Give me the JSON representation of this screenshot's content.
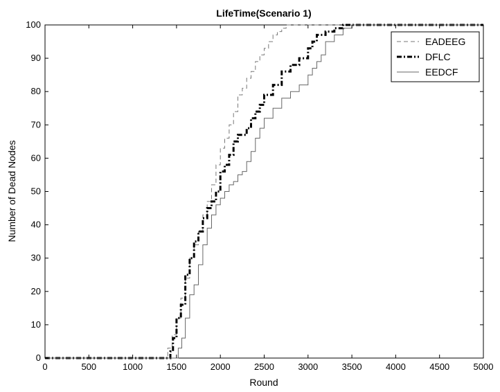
{
  "chart_data": {
    "type": "line",
    "title": "LifeTime(Scenario 1)",
    "xlabel": "Round",
    "ylabel": "Number of Dead Nodes",
    "xlim": [
      0,
      5000
    ],
    "ylim": [
      0,
      100
    ],
    "xticks": [
      0,
      500,
      1000,
      1500,
      2000,
      2500,
      3000,
      3500,
      4000,
      4500,
      5000
    ],
    "yticks": [
      0,
      10,
      20,
      30,
      40,
      50,
      60,
      70,
      80,
      90,
      100
    ],
    "grid": false,
    "legend_position": "top-right",
    "series": [
      {
        "name": "EADEEG",
        "style": "dashed",
        "color": "#777777",
        "x": [
          0,
          1380,
          1400,
          1450,
          1500,
          1550,
          1600,
          1650,
          1700,
          1750,
          1800,
          1850,
          1900,
          1950,
          2000,
          2050,
          2100,
          2150,
          2200,
          2250,
          2300,
          2350,
          2400,
          2450,
          2500,
          2550,
          2600,
          2650,
          2700,
          2750,
          5000
        ],
        "y": [
          0,
          0,
          3,
          7,
          12,
          18,
          24,
          30,
          34,
          38,
          43,
          47,
          52,
          58,
          63,
          66,
          70,
          74,
          79,
          81,
          84,
          86,
          89,
          91,
          93,
          95,
          97,
          98,
          99,
          100,
          100
        ]
      },
      {
        "name": "DFLC",
        "style": "dashdot",
        "color": "#000000",
        "x": [
          0,
          1400,
          1430,
          1460,
          1500,
          1550,
          1600,
          1650,
          1700,
          1750,
          1800,
          1850,
          1900,
          1950,
          2000,
          2050,
          2100,
          2150,
          2200,
          2300,
          2350,
          2400,
          2450,
          2500,
          2600,
          2700,
          2800,
          2900,
          3000,
          3050,
          3100,
          3200,
          3300,
          3400,
          5000
        ],
        "y": [
          0,
          0,
          2,
          6,
          12,
          16,
          25,
          30,
          35,
          38,
          42,
          45,
          47,
          50,
          56,
          58,
          61,
          65,
          67,
          69,
          72,
          74,
          76,
          79,
          82,
          86,
          88,
          90,
          93,
          95,
          97,
          98,
          99,
          100,
          100
        ]
      },
      {
        "name": "EEDCF",
        "style": "solid",
        "color": "#666666",
        "x": [
          0,
          1480,
          1520,
          1560,
          1600,
          1650,
          1700,
          1750,
          1800,
          1850,
          1900,
          1950,
          2000,
          2050,
          2100,
          2150,
          2200,
          2250,
          2300,
          2350,
          2400,
          2450,
          2500,
          2600,
          2700,
          2800,
          2900,
          3000,
          3050,
          3100,
          3150,
          3200,
          3300,
          3400,
          3500,
          5000
        ],
        "y": [
          0,
          0,
          3,
          6,
          12,
          19,
          22,
          28,
          34,
          39,
          43,
          46,
          48,
          50,
          52,
          53,
          55,
          56,
          59,
          62,
          66,
          69,
          72,
          75,
          78,
          80,
          82,
          85,
          87,
          89,
          91,
          95,
          97,
          99,
          100,
          100
        ]
      }
    ]
  }
}
